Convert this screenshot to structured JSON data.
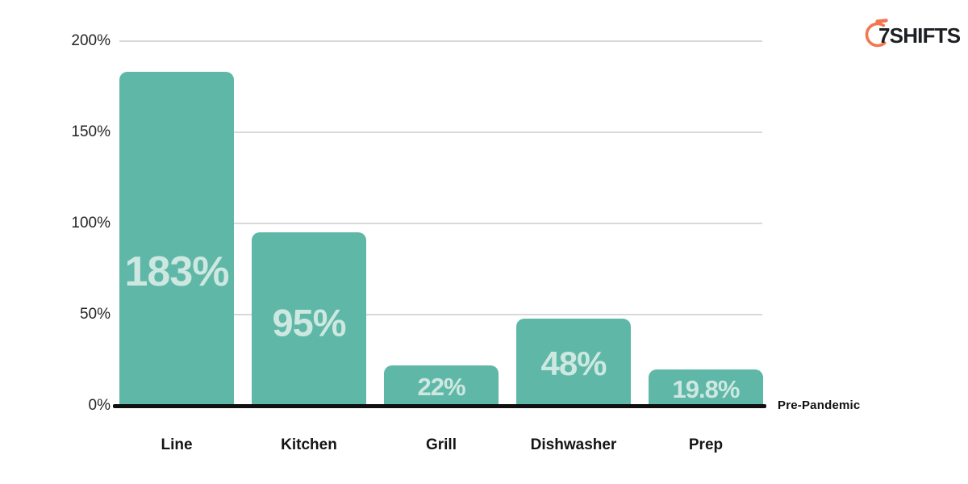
{
  "brand": {
    "name": "7SHIFTS",
    "accent_color": "#F2764E",
    "text_color": "#1D1F23"
  },
  "chart_data": {
    "type": "bar",
    "title": "",
    "categories": [
      "Line",
      "Kitchen",
      "Grill",
      "Dishwasher",
      "Prep"
    ],
    "values": [
      183,
      95,
      22,
      48,
      19.8
    ],
    "bar_labels": [
      "183%",
      "95%",
      "22%",
      "48%",
      "19.8%"
    ],
    "y_ticks": [
      "0%",
      "50%",
      "100%",
      "150%",
      "200%"
    ],
    "ylim": [
      0,
      200
    ],
    "grid": true,
    "legend": "none",
    "baseline_annotation": "Pre-Pandemic",
    "bar_color": "#5FB7A7",
    "bar_label_color": "#CDE8E1",
    "gridline_color": "#D9D9D9",
    "axis_line_color": "#101010"
  }
}
